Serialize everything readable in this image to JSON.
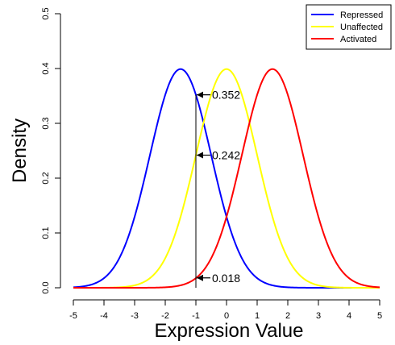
{
  "chart_data": {
    "type": "line",
    "xlabel": "Expression Value",
    "ylabel": "Density",
    "xlim": [
      -5,
      5
    ],
    "ylim": [
      0,
      0.5
    ],
    "x_ticks": [
      "-5",
      "-4",
      "-3",
      "-2",
      "-1",
      "0",
      "1",
      "2",
      "3",
      "4",
      "5"
    ],
    "y_ticks": [
      "0.0",
      "0.1",
      "0.2",
      "0.3",
      "0.4",
      "0.5"
    ],
    "series": [
      {
        "name": "Repressed",
        "color": "#0000ff",
        "distribution": "normal",
        "mean": -1.5,
        "sd": 1
      },
      {
        "name": "Unaffected",
        "color": "#ffff00",
        "distribution": "normal",
        "mean": 0,
        "sd": 1
      },
      {
        "name": "Activated",
        "color": "#ff0000",
        "distribution": "normal",
        "mean": 1.5,
        "sd": 1
      }
    ],
    "vertical_line": {
      "x": -1
    },
    "annotations": [
      {
        "label": "0.352",
        "x": -1,
        "y": 0.352
      },
      {
        "label": "0.242",
        "x": -1,
        "y": 0.242
      },
      {
        "label": "0.018",
        "x": -1,
        "y": 0.018
      }
    ],
    "legend": {
      "position": "top-right",
      "entries": [
        "Repressed",
        "Unaffected",
        "Activated"
      ]
    },
    "grid": false
  }
}
